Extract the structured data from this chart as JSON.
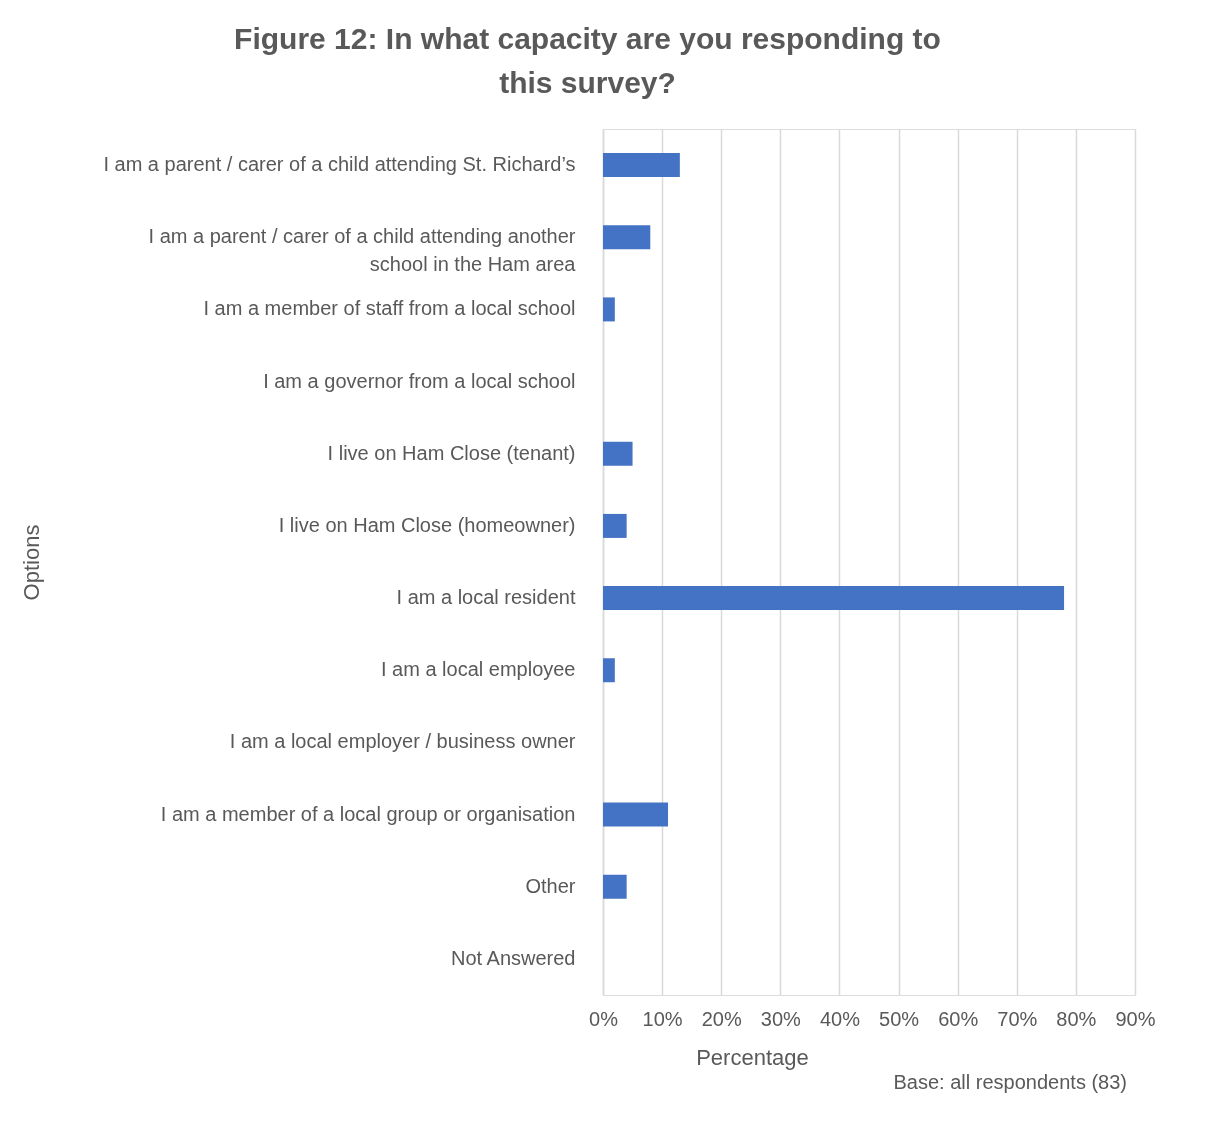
{
  "chart_data": {
    "type": "bar",
    "orientation": "horizontal",
    "title": "Figure 12: In what capacity are you responding to this survey?",
    "categories": [
      "I am a parent / carer of a child attending St. Richard’s",
      "I am a parent / carer of a child attending another\nschool in the Ham area",
      "I am a member of staff from a local school",
      "I am a governor from a local school",
      "I live on Ham Close (tenant)",
      "I live on Ham Close (homeowner)",
      "I am a local resident",
      "I am a local employee",
      "I am a local employer / business owner",
      "I am a member of a local group or organisation",
      "Other",
      "Not Answered"
    ],
    "values": [
      13,
      8,
      2,
      0,
      5,
      4,
      78,
      2,
      0,
      11,
      4,
      0
    ],
    "color": "#4472c4",
    "xlim": [
      0,
      90
    ],
    "xticks": [
      {
        "value": 0,
        "label": "0%"
      },
      {
        "value": 10,
        "label": "10%"
      },
      {
        "value": 20,
        "label": "20%"
      },
      {
        "value": 30,
        "label": "30%"
      },
      {
        "value": 40,
        "label": "40%"
      },
      {
        "value": 50,
        "label": "50%"
      },
      {
        "value": 60,
        "label": "60%"
      },
      {
        "value": 70,
        "label": "70%"
      },
      {
        "value": 80,
        "label": "80%"
      },
      {
        "value": 90,
        "label": "90%"
      }
    ],
    "xlabel": "Percentage",
    "ylabel": "Options",
    "annotations": [
      "Base:  all respondents (83)"
    ],
    "grid": "x"
  }
}
